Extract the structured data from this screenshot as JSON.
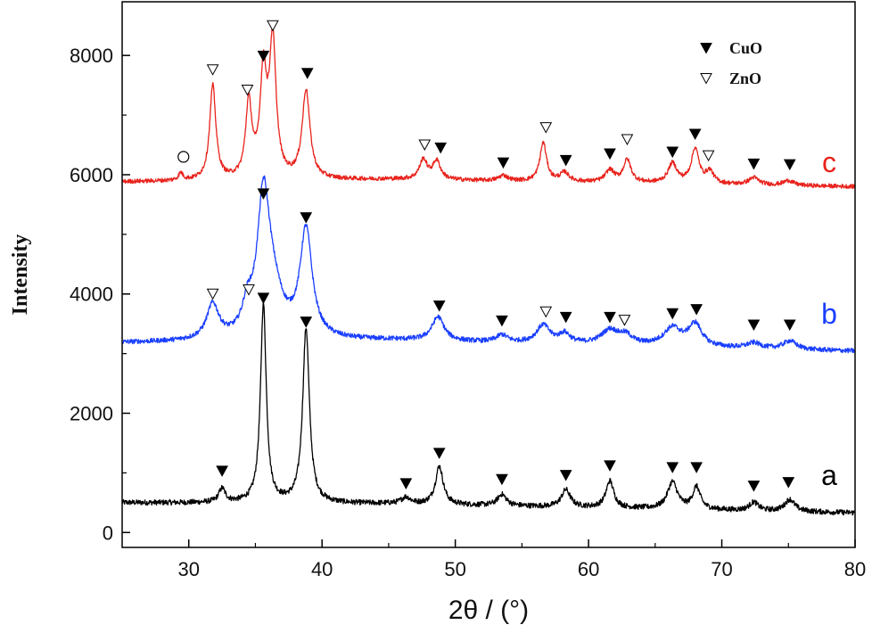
{
  "chart_data": {
    "type": "line",
    "xlabel": "2θ / (°)",
    "ylabel": "Intensity",
    "xlim": [
      25,
      80
    ],
    "ylim": [
      -250,
      8900
    ],
    "xticks": [
      30,
      40,
      50,
      60,
      70,
      80
    ],
    "yticks": [
      0,
      2000,
      4000,
      6000,
      8000
    ],
    "grid": false,
    "legend": {
      "position": "top-right",
      "entries": [
        {
          "label": "CuO",
          "marker": "filled-down-triangle"
        },
        {
          "label": "ZnO",
          "marker": "open-down-triangle"
        }
      ]
    },
    "series": [
      {
        "name": "a",
        "color": "#000000",
        "baseline": [
          [
            25,
            500
          ],
          [
            45,
            480
          ],
          [
            80,
            330
          ]
        ],
        "noise": 45,
        "peaks": [
          {
            "x": 32.5,
            "h": 230,
            "w": 0.3
          },
          {
            "x": 35.6,
            "h": 3330,
            "w": 0.26
          },
          {
            "x": 38.8,
            "h": 2930,
            "w": 0.3
          },
          {
            "x": 46.3,
            "h": 110,
            "w": 0.4
          },
          {
            "x": 48.8,
            "h": 640,
            "w": 0.35
          },
          {
            "x": 53.5,
            "h": 190,
            "w": 0.4
          },
          {
            "x": 58.3,
            "h": 290,
            "w": 0.4
          },
          {
            "x": 61.6,
            "h": 450,
            "w": 0.35
          },
          {
            "x": 66.3,
            "h": 450,
            "w": 0.45
          },
          {
            "x": 68.1,
            "h": 370,
            "w": 0.35
          },
          {
            "x": 72.4,
            "h": 140,
            "w": 0.4
          },
          {
            "x": 75.1,
            "h": 200,
            "w": 0.45
          }
        ],
        "markers": [
          {
            "x": 32.5,
            "y": 1030,
            "phase": "CuO"
          },
          {
            "x": 35.6,
            "y": 3930,
            "phase": "CuO"
          },
          {
            "x": 38.8,
            "y": 3530,
            "phase": "CuO"
          },
          {
            "x": 46.3,
            "y": 820,
            "phase": "CuO"
          },
          {
            "x": 48.8,
            "y": 1330,
            "phase": "CuO"
          },
          {
            "x": 53.5,
            "y": 890,
            "phase": "CuO"
          },
          {
            "x": 58.3,
            "y": 960,
            "phase": "CuO"
          },
          {
            "x": 61.6,
            "y": 1120,
            "phase": "CuO"
          },
          {
            "x": 66.3,
            "y": 1090,
            "phase": "CuO"
          },
          {
            "x": 68.1,
            "y": 1090,
            "phase": "CuO"
          },
          {
            "x": 72.4,
            "y": 780,
            "phase": "CuO"
          },
          {
            "x": 75.0,
            "y": 840,
            "phase": "CuO"
          }
        ],
        "label": "a"
      },
      {
        "name": "b",
        "color": "#1a3fff",
        "baseline": [
          [
            25,
            3180
          ],
          [
            45,
            3220
          ],
          [
            80,
            3040
          ]
        ],
        "noise": 40,
        "peaks": [
          {
            "x": 31.8,
            "h": 580,
            "w": 0.55
          },
          {
            "x": 34.4,
            "h": 420,
            "w": 0.45
          },
          {
            "x": 35.6,
            "h": 2200,
            "w": 0.55
          },
          {
            "x": 36.3,
            "h": 700,
            "w": 0.9
          },
          {
            "x": 38.8,
            "h": 1800,
            "w": 0.55
          },
          {
            "x": 48.7,
            "h": 400,
            "w": 0.55
          },
          {
            "x": 53.5,
            "h": 120,
            "w": 0.5
          },
          {
            "x": 56.6,
            "h": 300,
            "w": 0.6
          },
          {
            "x": 58.2,
            "h": 160,
            "w": 0.5
          },
          {
            "x": 61.6,
            "h": 240,
            "w": 0.8
          },
          {
            "x": 62.8,
            "h": 140,
            "w": 0.6
          },
          {
            "x": 66.3,
            "h": 300,
            "w": 0.8
          },
          {
            "x": 68.0,
            "h": 370,
            "w": 0.6
          },
          {
            "x": 72.4,
            "h": 90,
            "w": 0.6
          },
          {
            "x": 75.1,
            "h": 140,
            "w": 0.6
          }
        ],
        "markers": [
          {
            "x": 31.8,
            "y": 4000,
            "phase": "ZnO"
          },
          {
            "x": 34.5,
            "y": 4070,
            "phase": "ZnO"
          },
          {
            "x": 35.6,
            "y": 5680,
            "phase": "CuO"
          },
          {
            "x": 38.8,
            "y": 5280,
            "phase": "CuO"
          },
          {
            "x": 48.8,
            "y": 3800,
            "phase": "CuO"
          },
          {
            "x": 53.5,
            "y": 3550,
            "phase": "CuO"
          },
          {
            "x": 56.8,
            "y": 3700,
            "phase": "ZnO"
          },
          {
            "x": 58.3,
            "y": 3610,
            "phase": "CuO"
          },
          {
            "x": 61.6,
            "y": 3610,
            "phase": "CuO"
          },
          {
            "x": 62.7,
            "y": 3560,
            "phase": "ZnO"
          },
          {
            "x": 66.3,
            "y": 3670,
            "phase": "CuO"
          },
          {
            "x": 68.1,
            "y": 3740,
            "phase": "CuO"
          },
          {
            "x": 72.4,
            "y": 3480,
            "phase": "CuO"
          },
          {
            "x": 75.1,
            "y": 3480,
            "phase": "CuO"
          }
        ],
        "label": "b"
      },
      {
        "name": "c",
        "color": "#e8231c",
        "baseline": [
          [
            25,
            5880
          ],
          [
            45,
            5920
          ],
          [
            80,
            5800
          ]
        ],
        "noise": 35,
        "peaks": [
          {
            "x": 29.4,
            "h": 120,
            "w": 0.2
          },
          {
            "x": 31.8,
            "h": 1580,
            "w": 0.28
          },
          {
            "x": 34.5,
            "h": 1250,
            "w": 0.28
          },
          {
            "x": 35.6,
            "h": 1700,
            "w": 0.3
          },
          {
            "x": 36.3,
            "h": 2250,
            "w": 0.3
          },
          {
            "x": 38.8,
            "h": 1480,
            "w": 0.35
          },
          {
            "x": 47.6,
            "h": 330,
            "w": 0.35
          },
          {
            "x": 48.6,
            "h": 310,
            "w": 0.35
          },
          {
            "x": 53.6,
            "h": 90,
            "w": 0.4
          },
          {
            "x": 56.6,
            "h": 650,
            "w": 0.3
          },
          {
            "x": 58.2,
            "h": 150,
            "w": 0.4
          },
          {
            "x": 61.6,
            "h": 200,
            "w": 0.4
          },
          {
            "x": 62.9,
            "h": 380,
            "w": 0.35
          },
          {
            "x": 66.3,
            "h": 330,
            "w": 0.4
          },
          {
            "x": 68.0,
            "h": 580,
            "w": 0.35
          },
          {
            "x": 69.1,
            "h": 200,
            "w": 0.35
          },
          {
            "x": 72.4,
            "h": 120,
            "w": 0.45
          },
          {
            "x": 75.0,
            "h": 80,
            "w": 0.45
          }
        ],
        "markers": [
          {
            "x": 29.6,
            "y": 6300,
            "phase": "other"
          },
          {
            "x": 31.8,
            "y": 7760,
            "phase": "ZnO"
          },
          {
            "x": 34.4,
            "y": 7420,
            "phase": "ZnO"
          },
          {
            "x": 35.6,
            "y": 7990,
            "phase": "CuO"
          },
          {
            "x": 36.3,
            "y": 8500,
            "phase": "ZnO"
          },
          {
            "x": 38.9,
            "y": 7700,
            "phase": "CuO"
          },
          {
            "x": 47.7,
            "y": 6500,
            "phase": "ZnO"
          },
          {
            "x": 48.9,
            "y": 6450,
            "phase": "CuO"
          },
          {
            "x": 53.6,
            "y": 6200,
            "phase": "CuO"
          },
          {
            "x": 56.8,
            "y": 6790,
            "phase": "ZnO"
          },
          {
            "x": 58.3,
            "y": 6240,
            "phase": "CuO"
          },
          {
            "x": 61.6,
            "y": 6350,
            "phase": "CuO"
          },
          {
            "x": 62.9,
            "y": 6590,
            "phase": "ZnO"
          },
          {
            "x": 66.3,
            "y": 6380,
            "phase": "CuO"
          },
          {
            "x": 68.0,
            "y": 6680,
            "phase": "CuO"
          },
          {
            "x": 69.0,
            "y": 6320,
            "phase": "ZnO"
          },
          {
            "x": 72.4,
            "y": 6180,
            "phase": "CuO"
          },
          {
            "x": 75.1,
            "y": 6170,
            "phase": "CuO"
          }
        ],
        "label": "c"
      }
    ]
  }
}
